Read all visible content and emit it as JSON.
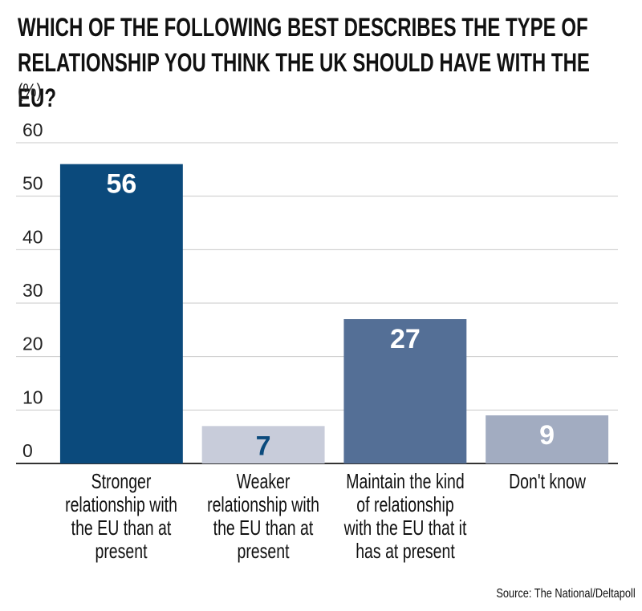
{
  "chart_data": {
    "type": "bar",
    "title": "WHICH OF THE FOLLOWING BEST DESCRIBES THE TYPE OF RELATIONSHIP YOU THINK THE UK SHOULD HAVE WITH THE EU?",
    "y_label": "(%)",
    "categories": [
      "Stronger relationship with the EU than at present",
      "Weaker relationship with the EU than at present",
      "Maintain the kind of relationship with the EU that it has at present",
      "Don't know"
    ],
    "values": [
      56,
      7,
      27,
      9
    ],
    "colors": [
      "#0b4a7c",
      "#c8ccda",
      "#546f96",
      "#a2acc1"
    ],
    "value_label_colors": [
      "#ffffff",
      "#0b4a7c",
      "#ffffff",
      "#ffffff"
    ],
    "ylim": [
      0,
      60
    ],
    "yticks": [
      0,
      10,
      20,
      30,
      40,
      50,
      60
    ],
    "grid": true,
    "source": "Source: The National/Deltapoll"
  }
}
